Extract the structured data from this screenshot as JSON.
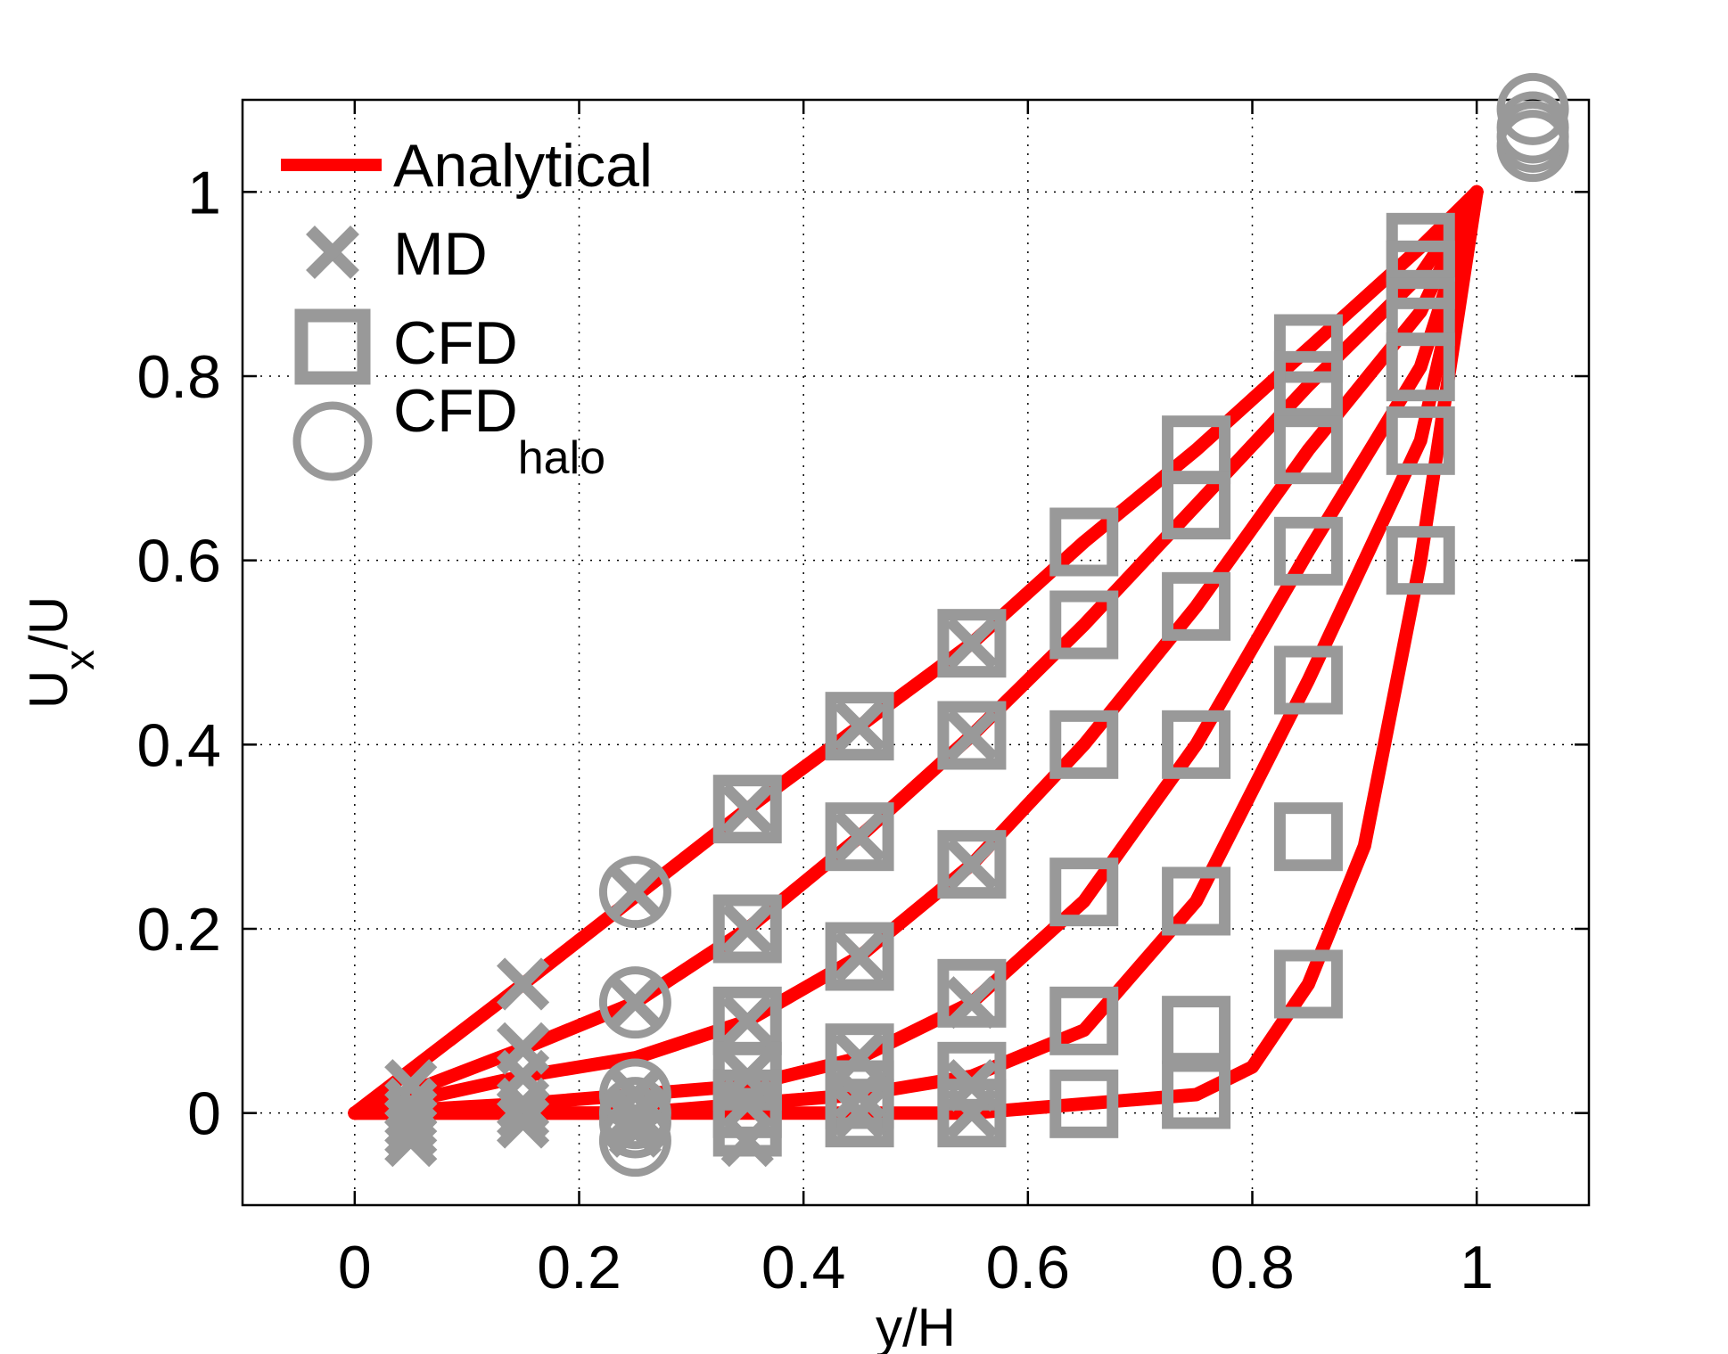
{
  "chart_data": {
    "type": "line",
    "title": "",
    "xlabel": "y/H",
    "ylabel": {
      "main": "U",
      "sub": "x",
      "rest": "/U"
    },
    "xlim": [
      -0.1,
      1.1
    ],
    "ylim": [
      -0.1,
      1.1
    ],
    "xticks": [
      0,
      0.2,
      0.4,
      0.6,
      0.8,
      1
    ],
    "xtick_labels": [
      "0",
      "0.2",
      "0.4",
      "0.6",
      "0.8",
      "1"
    ],
    "yticks": [
      0,
      0.2,
      0.4,
      0.6,
      0.8,
      1
    ],
    "ytick_labels": [
      "0",
      "0.2",
      "0.4",
      "0.6",
      "0.8",
      "1"
    ],
    "grid": true,
    "legend": {
      "position": "top-left",
      "entries": [
        {
          "label": "Analytical",
          "sub": "",
          "marker": "line"
        },
        {
          "label": "MD",
          "sub": "",
          "marker": "x"
        },
        {
          "label": "CFD",
          "sub": "",
          "marker": "square"
        },
        {
          "label": "CFD",
          "sub": "halo",
          "marker": "circle"
        }
      ]
    },
    "colors": {
      "analytical": "#ff0000",
      "markers": "#999999"
    },
    "series": [
      {
        "x": [
          0,
          0.15,
          0.35,
          0.45,
          0.55,
          0.65,
          0.75,
          0.85,
          0.95,
          1.0
        ],
        "y": [
          0,
          0.14,
          0.33,
          0.42,
          0.51,
          0.62,
          0.72,
          0.83,
          0.94,
          1.0
        ]
      },
      {
        "x": [
          0,
          0.15,
          0.25,
          0.35,
          0.45,
          0.55,
          0.65,
          0.75,
          0.85,
          0.95,
          1.0
        ],
        "y": [
          0,
          0.07,
          0.12,
          0.2,
          0.3,
          0.41,
          0.53,
          0.66,
          0.79,
          0.91,
          1.0
        ]
      },
      {
        "x": [
          0,
          0.15,
          0.25,
          0.35,
          0.45,
          0.55,
          0.65,
          0.75,
          0.85,
          0.95,
          1.0
        ],
        "y": [
          0,
          0.04,
          0.06,
          0.1,
          0.17,
          0.27,
          0.4,
          0.55,
          0.72,
          0.87,
          1.0
        ]
      },
      {
        "x": [
          0,
          0.15,
          0.25,
          0.35,
          0.45,
          0.55,
          0.65,
          0.75,
          0.85,
          0.95,
          1.0
        ],
        "y": [
          0,
          0.01,
          0.02,
          0.03,
          0.06,
          0.12,
          0.23,
          0.4,
          0.61,
          0.81,
          1.0
        ]
      },
      {
        "x": [
          0,
          0.15,
          0.25,
          0.35,
          0.45,
          0.55,
          0.65,
          0.75,
          0.85,
          0.95,
          1.0
        ],
        "y": [
          0,
          0.0,
          0.0,
          0.01,
          0.02,
          0.04,
          0.09,
          0.23,
          0.47,
          0.73,
          1.0
        ]
      },
      {
        "x": [
          0,
          0.15,
          0.25,
          0.35,
          0.45,
          0.55,
          0.65,
          0.75,
          0.8,
          0.85,
          0.9,
          0.95,
          1.0
        ],
        "y": [
          0,
          0.0,
          0.0,
          0.0,
          0.0,
          0.0,
          0.01,
          0.02,
          0.05,
          0.14,
          0.29,
          0.6,
          1.0
        ]
      }
    ],
    "md_points": [
      {
        "x": 0.05,
        "y": 0.03
      },
      {
        "x": 0.05,
        "y": 0.01
      },
      {
        "x": 0.05,
        "y": 0.0
      },
      {
        "x": 0.05,
        "y": -0.01
      },
      {
        "x": 0.05,
        "y": -0.02
      },
      {
        "x": 0.05,
        "y": -0.03
      },
      {
        "x": 0.15,
        "y": 0.14
      },
      {
        "x": 0.15,
        "y": 0.07
      },
      {
        "x": 0.15,
        "y": 0.04
      },
      {
        "x": 0.15,
        "y": 0.01
      },
      {
        "x": 0.15,
        "y": 0.0
      },
      {
        "x": 0.15,
        "y": -0.01
      },
      {
        "x": 0.25,
        "y": 0.24
      },
      {
        "x": 0.25,
        "y": 0.12
      },
      {
        "x": 0.25,
        "y": 0.02
      },
      {
        "x": 0.25,
        "y": 0.0
      },
      {
        "x": 0.25,
        "y": -0.01
      },
      {
        "x": 0.25,
        "y": -0.02
      },
      {
        "x": 0.35,
        "y": 0.33
      },
      {
        "x": 0.35,
        "y": 0.2
      },
      {
        "x": 0.35,
        "y": 0.1
      },
      {
        "x": 0.35,
        "y": 0.04
      },
      {
        "x": 0.35,
        "y": 0.01
      },
      {
        "x": 0.35,
        "y": -0.03
      },
      {
        "x": 0.45,
        "y": 0.42
      },
      {
        "x": 0.45,
        "y": 0.3
      },
      {
        "x": 0.45,
        "y": 0.17
      },
      {
        "x": 0.45,
        "y": 0.06
      },
      {
        "x": 0.45,
        "y": 0.02
      },
      {
        "x": 0.45,
        "y": 0.0
      },
      {
        "x": 0.55,
        "y": 0.51
      },
      {
        "x": 0.55,
        "y": 0.41
      },
      {
        "x": 0.55,
        "y": 0.27
      },
      {
        "x": 0.55,
        "y": 0.12
      },
      {
        "x": 0.55,
        "y": 0.03
      },
      {
        "x": 0.55,
        "y": 0.0
      }
    ],
    "cfd_points": [
      {
        "x": 0.35,
        "y": 0.33
      },
      {
        "x": 0.35,
        "y": 0.2
      },
      {
        "x": 0.35,
        "y": 0.1
      },
      {
        "x": 0.35,
        "y": 0.04
      },
      {
        "x": 0.35,
        "y": 0.01
      },
      {
        "x": 0.35,
        "y": -0.01
      },
      {
        "x": 0.45,
        "y": 0.42
      },
      {
        "x": 0.45,
        "y": 0.3
      },
      {
        "x": 0.45,
        "y": 0.17
      },
      {
        "x": 0.45,
        "y": 0.06
      },
      {
        "x": 0.45,
        "y": 0.02
      },
      {
        "x": 0.45,
        "y": 0.0
      },
      {
        "x": 0.55,
        "y": 0.51
      },
      {
        "x": 0.55,
        "y": 0.41
      },
      {
        "x": 0.55,
        "y": 0.27
      },
      {
        "x": 0.55,
        "y": 0.13
      },
      {
        "x": 0.55,
        "y": 0.04
      },
      {
        "x": 0.55,
        "y": 0.0
      },
      {
        "x": 0.65,
        "y": 0.62
      },
      {
        "x": 0.65,
        "y": 0.53
      },
      {
        "x": 0.65,
        "y": 0.4
      },
      {
        "x": 0.65,
        "y": 0.24
      },
      {
        "x": 0.65,
        "y": 0.1
      },
      {
        "x": 0.65,
        "y": 0.01
      },
      {
        "x": 0.75,
        "y": 0.72
      },
      {
        "x": 0.75,
        "y": 0.66
      },
      {
        "x": 0.75,
        "y": 0.55
      },
      {
        "x": 0.75,
        "y": 0.4
      },
      {
        "x": 0.75,
        "y": 0.23
      },
      {
        "x": 0.75,
        "y": 0.09
      },
      {
        "x": 0.75,
        "y": 0.02
      },
      {
        "x": 0.85,
        "y": 0.83
      },
      {
        "x": 0.85,
        "y": 0.79
      },
      {
        "x": 0.85,
        "y": 0.72
      },
      {
        "x": 0.85,
        "y": 0.61
      },
      {
        "x": 0.85,
        "y": 0.47
      },
      {
        "x": 0.85,
        "y": 0.3
      },
      {
        "x": 0.85,
        "y": 0.14
      },
      {
        "x": 0.95,
        "y": 0.94
      },
      {
        "x": 0.95,
        "y": 0.91
      },
      {
        "x": 0.95,
        "y": 0.87
      },
      {
        "x": 0.95,
        "y": 0.81
      },
      {
        "x": 0.95,
        "y": 0.73
      },
      {
        "x": 0.95,
        "y": 0.6
      }
    ],
    "halo_points": [
      {
        "x": 0.25,
        "y": 0.24
      },
      {
        "x": 0.25,
        "y": 0.12
      },
      {
        "x": 0.25,
        "y": 0.02
      },
      {
        "x": 0.25,
        "y": 0.0
      },
      {
        "x": 0.25,
        "y": -0.01
      },
      {
        "x": 0.25,
        "y": -0.03
      },
      {
        "x": 1.05,
        "y": 1.09
      },
      {
        "x": 1.05,
        "y": 1.07
      },
      {
        "x": 1.05,
        "y": 1.06
      },
      {
        "x": 1.05,
        "y": 1.05
      }
    ]
  }
}
